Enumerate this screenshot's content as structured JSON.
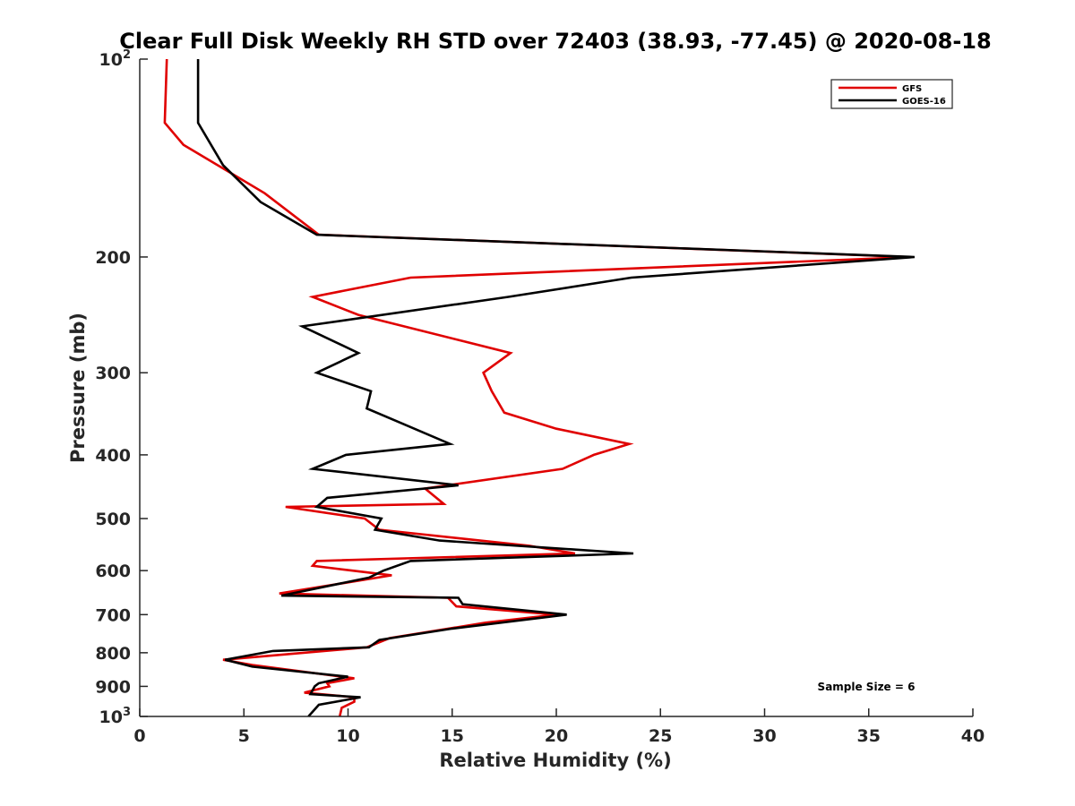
{
  "chart_data": {
    "type": "line",
    "title": "Clear Full Disk Weekly RH STD over 72403 (38.93, -77.45) @ 2020-08-18",
    "xlabel": "Relative Humidity (%)",
    "ylabel": "Pressure (mb)",
    "xlim": [
      0,
      40
    ],
    "ylim": [
      100,
      1000
    ],
    "y_scale": "log",
    "y_reversed": true,
    "grid": false,
    "legend_position": "top-right",
    "x_ticks": [
      "0",
      "5",
      "10",
      "15",
      "20",
      "25",
      "30",
      "35",
      "40"
    ],
    "y_ticks": [
      {
        "value": 100,
        "base": "10",
        "exp": "2"
      },
      {
        "value": 200,
        "label": "200"
      },
      {
        "value": 300,
        "label": "300"
      },
      {
        "value": 400,
        "label": "400"
      },
      {
        "value": 500,
        "label": "500"
      },
      {
        "value": 600,
        "label": "600"
      },
      {
        "value": 700,
        "label": "700"
      },
      {
        "value": 800,
        "label": "800"
      },
      {
        "value": 900,
        "label": "900"
      },
      {
        "value": 1000,
        "base": "10",
        "exp": "3"
      }
    ],
    "annotation": "Sample Size = 6",
    "series": [
      {
        "name": "GFS",
        "color": "#e00000",
        "points": [
          [
            1.3,
            100
          ],
          [
            1.2,
            125
          ],
          [
            2.1,
            135
          ],
          [
            6.0,
            160
          ],
          [
            8.6,
            185
          ],
          [
            37.0,
            200
          ],
          [
            13.0,
            215
          ],
          [
            8.3,
            230
          ],
          [
            10.5,
            245
          ],
          [
            17.8,
            280
          ],
          [
            16.5,
            300
          ],
          [
            16.9,
            320
          ],
          [
            17.5,
            345
          ],
          [
            20.0,
            365
          ],
          [
            23.5,
            385
          ],
          [
            21.8,
            400
          ],
          [
            20.3,
            420
          ],
          [
            13.7,
            450
          ],
          [
            14.6,
            475
          ],
          [
            7.0,
            480
          ],
          [
            10.8,
            500
          ],
          [
            11.5,
            520
          ],
          [
            18.7,
            550
          ],
          [
            20.9,
            565
          ],
          [
            8.5,
            580
          ],
          [
            8.3,
            590
          ],
          [
            12.1,
            610
          ],
          [
            6.7,
            650
          ],
          [
            14.8,
            660
          ],
          [
            15.2,
            680
          ],
          [
            20.0,
            700
          ],
          [
            16.6,
            720
          ],
          [
            12.0,
            760
          ],
          [
            10.9,
            785
          ],
          [
            4.0,
            820
          ],
          [
            5.4,
            835
          ],
          [
            10.3,
            875
          ],
          [
            9.0,
            890
          ],
          [
            9.1,
            900
          ],
          [
            7.9,
            920
          ],
          [
            10.3,
            935
          ],
          [
            10.3,
            950
          ],
          [
            9.7,
            970
          ],
          [
            9.6,
            1000
          ]
        ]
      },
      {
        "name": "GOES-16",
        "color": "#000000",
        "points": [
          [
            2.8,
            100
          ],
          [
            2.8,
            125
          ],
          [
            4.0,
            145
          ],
          [
            5.8,
            165
          ],
          [
            8.5,
            185
          ],
          [
            37.2,
            200
          ],
          [
            23.6,
            215
          ],
          [
            17.7,
            230
          ],
          [
            7.8,
            255
          ],
          [
            10.5,
            280
          ],
          [
            8.5,
            300
          ],
          [
            11.1,
            320
          ],
          [
            10.9,
            340
          ],
          [
            12.3,
            355
          ],
          [
            14.9,
            385
          ],
          [
            9.9,
            400
          ],
          [
            8.3,
            420
          ],
          [
            15.3,
            445
          ],
          [
            9.0,
            465
          ],
          [
            8.5,
            480
          ],
          [
            11.6,
            500
          ],
          [
            11.3,
            520
          ],
          [
            14.4,
            540
          ],
          [
            23.7,
            565
          ],
          [
            13.0,
            580
          ],
          [
            11.7,
            600
          ],
          [
            11.0,
            615
          ],
          [
            6.8,
            655
          ],
          [
            15.3,
            660
          ],
          [
            15.5,
            675
          ],
          [
            20.5,
            700
          ],
          [
            15.0,
            735
          ],
          [
            11.5,
            765
          ],
          [
            11.0,
            785
          ],
          [
            6.4,
            795
          ],
          [
            4.1,
            820
          ],
          [
            5.4,
            840
          ],
          [
            10.0,
            870
          ],
          [
            8.6,
            890
          ],
          [
            8.4,
            900
          ],
          [
            8.2,
            925
          ],
          [
            10.6,
            935
          ],
          [
            8.6,
            960
          ],
          [
            8.1,
            1000
          ]
        ]
      }
    ]
  }
}
